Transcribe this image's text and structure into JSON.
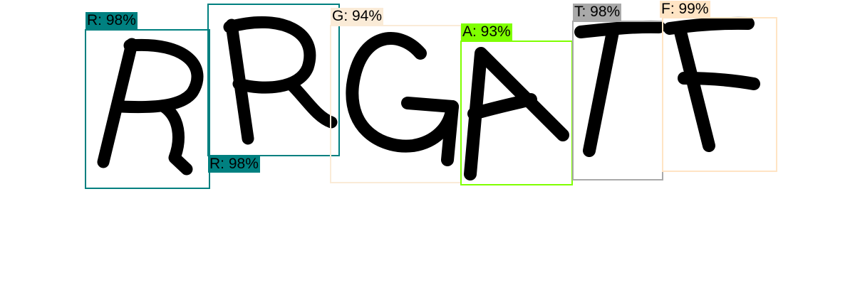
{
  "detections": [
    {
      "class": "R",
      "confidence": "98%",
      "label": "R: 98%",
      "color": "#008080"
    },
    {
      "class": "R",
      "confidence": "98%",
      "label": "R: 98%",
      "color": "#008080"
    },
    {
      "class": "G",
      "confidence": "94%",
      "label": "G: 94%",
      "color": "#FAEBD7"
    },
    {
      "class": "A",
      "confidence": "93%",
      "label": "A: 93%",
      "color": "#7FFF00"
    },
    {
      "class": "T",
      "confidence": "98%",
      "label": "T: 98%",
      "color": "#A9A9A9"
    },
    {
      "class": "F",
      "confidence": "99%",
      "label": "F: 99%",
      "color": "#FFE4C4"
    }
  ]
}
